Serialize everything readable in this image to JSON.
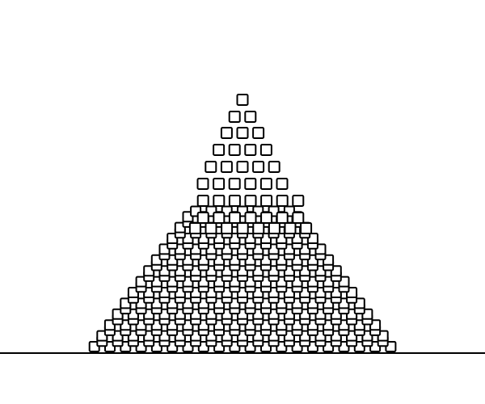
{
  "scene": {
    "type": "physics-stacking-simulation",
    "background_color": "#ffffff",
    "stroke_color": "#000000",
    "box_fill_color": "#ffffff",
    "objects": [
      {
        "kind": "ground-line",
        "count": 1
      },
      {
        "kind": "box",
        "shape": "rounded-square",
        "arrangement": "pyramid",
        "approx_rows": 22,
        "approx_count": 300
      }
    ]
  }
}
